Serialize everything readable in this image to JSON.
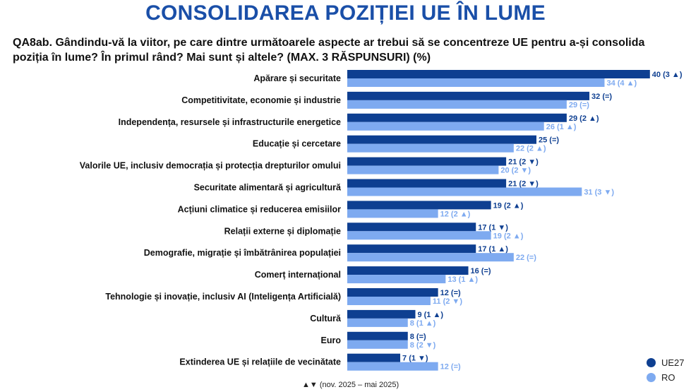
{
  "title": "CONSOLIDAREA POZIȚIEI UE ÎN LUME",
  "question": "QA8ab. Gândindu-vă la viitor, pe care dintre următoarele aspecte ar trebui să se concentreze UE pentru a-și consolida poziția în lume? În primul rând? Mai sunt și altele? (MAX. 3 RĂSPUNSURI) (%)",
  "note": "▲▼ (nov. 2025 – mai 2025)",
  "colors": {
    "UE27": "#0e3f91",
    "RO": "#7eaaf0"
  },
  "chart_data": {
    "type": "bar",
    "orientation": "horizontal",
    "categories": [
      "Apărare și securitate",
      "Competitivitate, economie și industrie",
      "Independența, resursele și infrastructurile energetice",
      "Educație și cercetare",
      "Valorile UE, inclusiv democrația și protecția drepturilor omului",
      "Securitate alimentară și agricultură",
      "Acțiuni climatice și reducerea emisiilor",
      "Relații externe și diplomație",
      "Demografie, migrație și îmbătrânirea populației",
      "Comerț internațional",
      "Tehnologie și inovație, inclusiv AI (Inteligența Artificială)",
      "Cultură",
      "Euro",
      "Extinderea UE și relațiile de vecinătate"
    ],
    "series": [
      {
        "name": "UE27",
        "values": [
          40,
          32,
          29,
          25,
          21,
          21,
          19,
          17,
          17,
          16,
          12,
          9,
          8,
          7
        ],
        "labels": [
          "40 (3 ▲)",
          "32 (=)",
          "29 (2 ▲)",
          "25 (=)",
          "21 (2 ▼)",
          "21 (2 ▼)",
          "19 (2 ▲)",
          "17 (1 ▼)",
          "17 (1 ▲)",
          "16 (=)",
          "12 (=)",
          "9 (1 ▲)",
          "8 (=)",
          "7 (1 ▼)"
        ]
      },
      {
        "name": "RO",
        "values": [
          34,
          29,
          26,
          22,
          20,
          31,
          12,
          19,
          22,
          13,
          11,
          8,
          8,
          12
        ],
        "labels": [
          "34 (4 ▲)",
          "29 (=)",
          "26 (1 ▲)",
          "22 (2 ▲)",
          "20 (2 ▼)",
          "31 (3 ▼)",
          "12 (2 ▲)",
          "19 (2 ▲)",
          "22 (=)",
          "13 (1 ▲)",
          "11 (2 ▼)",
          "8 (1 ▲)",
          "8 (2 ▼)",
          "12 (=)"
        ]
      }
    ],
    "legend": "bottom-right",
    "grid": false
  }
}
